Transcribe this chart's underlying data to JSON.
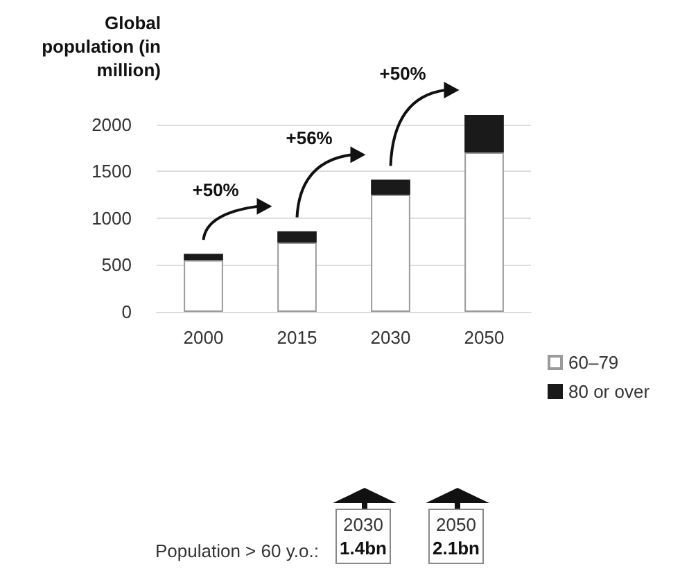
{
  "chart_data": {
    "type": "bar",
    "stacked": true,
    "ylabel": "Global population (in million)",
    "categories": [
      "2000",
      "2015",
      "2030",
      "2050"
    ],
    "series": [
      {
        "name": "60–79",
        "color": "#ffffff",
        "values": [
          550,
          740,
          1250,
          1700
        ]
      },
      {
        "name": "80 or over",
        "color": "#1a1a1a",
        "values": [
          70,
          120,
          160,
          400
        ]
      }
    ],
    "ylim": [
      0,
      2100
    ],
    "yticks": [
      0,
      500,
      1000,
      1500,
      2000
    ],
    "grid": "y",
    "legend": "bottom right",
    "annotations": [
      "+50%",
      "+56%",
      "+50%",
      "Population > 60 y.o.:",
      "2030",
      "1.4bn",
      "2050",
      "2.1bn"
    ]
  }
}
